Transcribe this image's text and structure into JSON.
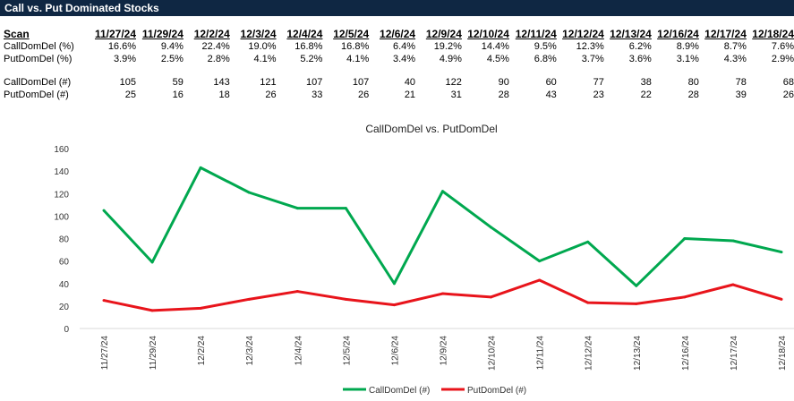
{
  "header": {
    "title": "Call vs. Put Dominated Stocks"
  },
  "table": {
    "scan_label": "Scan",
    "dates": [
      "11/27/24",
      "11/29/24",
      "12/2/24",
      "12/3/24",
      "12/4/24",
      "12/5/24",
      "12/6/24",
      "12/9/24",
      "12/10/24",
      "12/11/24",
      "12/12/24",
      "12/13/24",
      "12/16/24",
      "12/17/24",
      "12/18/24"
    ],
    "rows": [
      {
        "label": "CallDomDel (%)",
        "values": [
          "16.6%",
          "9.4%",
          "22.4%",
          "19.0%",
          "16.8%",
          "16.8%",
          "6.4%",
          "19.2%",
          "14.4%",
          "9.5%",
          "12.3%",
          "6.2%",
          "8.9%",
          "8.7%",
          "7.6%"
        ]
      },
      {
        "label": "PutDomDel (%)",
        "values": [
          "3.9%",
          "2.5%",
          "2.8%",
          "4.1%",
          "5.2%",
          "4.1%",
          "3.4%",
          "4.9%",
          "4.5%",
          "6.8%",
          "3.7%",
          "3.6%",
          "3.1%",
          "4.3%",
          "2.9%"
        ]
      },
      {
        "label": "CallDomDel (#)",
        "values": [
          "105",
          "59",
          "143",
          "121",
          "107",
          "107",
          "40",
          "122",
          "90",
          "60",
          "77",
          "38",
          "80",
          "78",
          "68"
        ]
      },
      {
        "label": "PutDomDel (#)",
        "values": [
          "25",
          "16",
          "18",
          "26",
          "33",
          "26",
          "21",
          "31",
          "28",
          "43",
          "23",
          "22",
          "28",
          "39",
          "26"
        ]
      }
    ]
  },
  "chart_data": {
    "type": "line",
    "title": "CallDomDel vs. PutDomDel",
    "categories": [
      "11/27/24",
      "11/29/24",
      "12/2/24",
      "12/3/24",
      "12/4/24",
      "12/5/24",
      "12/6/24",
      "12/9/24",
      "12/10/24",
      "12/11/24",
      "12/12/24",
      "12/13/24",
      "12/16/24",
      "12/17/24",
      "12/18/24"
    ],
    "series": [
      {
        "name": "CallDomDel (#)",
        "color": "#00a84f",
        "values": [
          105,
          59,
          143,
          121,
          107,
          107,
          40,
          122,
          90,
          60,
          77,
          38,
          80,
          78,
          68
        ]
      },
      {
        "name": "PutDomDel (#)",
        "color": "#e8141b",
        "values": [
          25,
          16,
          18,
          26,
          33,
          26,
          21,
          31,
          28,
          43,
          23,
          22,
          28,
          39,
          26
        ]
      }
    ],
    "yticks": [
      0,
      20,
      40,
      60,
      80,
      100,
      120,
      140,
      160
    ],
    "ylim": [
      0,
      160
    ],
    "grid": false,
    "legend": "bottom"
  }
}
